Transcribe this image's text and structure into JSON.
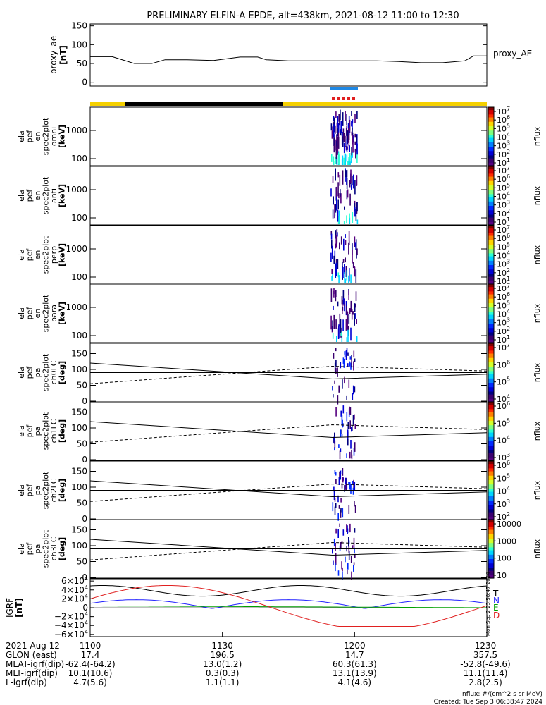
{
  "title": "PRELIMINARY ELFIN-A EPDE, alt=438km, 2021-08-12 11:00 to 12:30",
  "colors": {
    "day_bar": "#f5d000",
    "night_bar": "#000000",
    "blue": "#1e88e5",
    "red": "#e02020",
    "bx": "#e02020",
    "by": "#2020ff",
    "bz": "#00a000",
    "bt": "#000000"
  },
  "chart_data": [
    {
      "type": "line",
      "id": "proxy_ae",
      "ylabel": [
        "proxy_ae",
        "[nT]"
      ],
      "series_label": "proxy_AE",
      "ylim": [
        -10,
        155
      ],
      "yticks": [
        "150",
        "100",
        "50",
        "0"
      ],
      "ytick_values": [
        150,
        100,
        50,
        0
      ],
      "x": [
        0,
        5,
        10,
        14,
        17,
        22,
        28,
        34,
        38,
        40,
        45,
        50,
        55,
        60,
        65,
        70,
        75,
        80,
        85,
        87,
        90
      ],
      "y": [
        68,
        68,
        50,
        50,
        60,
        60,
        58,
        67,
        67,
        60,
        57,
        57,
        57,
        57,
        57,
        55,
        52,
        52,
        57,
        70,
        70
      ]
    },
    {
      "type": "heatmap",
      "id": "omni",
      "ylabel": [
        "ela",
        "pef",
        "en",
        "spec2plot",
        "omni",
        "[keV]"
      ],
      "yticks": [
        "1000",
        "100"
      ],
      "colorbar_ticks": [
        "10^7",
        "10^6",
        "10^5",
        "10^4",
        "10^3",
        "10^2",
        "10^1"
      ],
      "colorbar_label": "nflux"
    },
    {
      "type": "heatmap",
      "id": "anti",
      "ylabel": [
        "ela",
        "pef",
        "en",
        "spec2plot",
        "anti",
        "[keV]"
      ],
      "yticks": [
        "1000",
        "100"
      ],
      "colorbar_ticks": [
        "10^7",
        "10^6",
        "10^5",
        "10^4",
        "10^3",
        "10^2",
        "10^1"
      ],
      "colorbar_label": "nflux"
    },
    {
      "type": "heatmap",
      "id": "perp",
      "ylabel": [
        "ela",
        "pef",
        "en",
        "spec2plot",
        "perp",
        "[keV]"
      ],
      "yticks": [
        "1000",
        "100"
      ],
      "colorbar_ticks": [
        "10^7",
        "10^6",
        "10^5",
        "10^4",
        "10^3",
        "10^2",
        "10^1"
      ],
      "colorbar_label": "nflux"
    },
    {
      "type": "heatmap",
      "id": "para",
      "ylabel": [
        "ela",
        "pef",
        "en",
        "spec2plot",
        "para",
        "[keV]"
      ],
      "yticks": [
        "1000",
        "100"
      ],
      "colorbar_ticks": [
        "10^7",
        "10^6",
        "10^5",
        "10^4",
        "10^3",
        "10^2",
        "10^1"
      ],
      "colorbar_label": "nflux"
    },
    {
      "type": "heatmap",
      "id": "ch0LC",
      "ylabel": [
        "ela",
        "pef",
        "pa",
        "spec2plot",
        "ch0LC",
        "[deg]"
      ],
      "yticks": [
        "150",
        "100",
        "50",
        "0"
      ],
      "colorbar_ticks": [
        "10^7",
        "10^6",
        "10^5",
        "10^4"
      ],
      "colorbar_label": "nflux"
    },
    {
      "type": "heatmap",
      "id": "ch1LC",
      "ylabel": [
        "ela",
        "pef",
        "pa",
        "spec2plot",
        "ch1LC",
        "[deg]"
      ],
      "yticks": [
        "150",
        "100",
        "50",
        "0"
      ],
      "colorbar_ticks": [
        "10^6",
        "10^5",
        "10^4",
        "10^3"
      ],
      "colorbar_label": "nflux"
    },
    {
      "type": "heatmap",
      "id": "ch2LC",
      "ylabel": [
        "ela",
        "pef",
        "pa",
        "spec2plot",
        "ch2LC",
        "[deg]"
      ],
      "yticks": [
        "150",
        "100",
        "50",
        "0"
      ],
      "colorbar_ticks": [
        "10^6",
        "10^5",
        "10^4",
        "10^3",
        "10^2"
      ],
      "colorbar_label": "nflux"
    },
    {
      "type": "heatmap",
      "id": "ch3LC",
      "ylabel": [
        "ela",
        "pef",
        "pa",
        "spec2plot",
        "ch3LC",
        "[deg]"
      ],
      "yticks": [
        "150",
        "100",
        "50",
        "0"
      ],
      "colorbar_ticks": [
        "10000",
        "1000",
        "100",
        "10"
      ],
      "colorbar_label": "nflux"
    },
    {
      "type": "line",
      "id": "igrf",
      "ylabel": [
        "IGRF",
        "[nT]"
      ],
      "ylim": [
        -65000,
        65000
      ],
      "yticks": [
        "6×10^4",
        "4×10^4",
        "2×10^4",
        "0",
        "−2×10^4",
        "−4×10^4",
        "−6×10^4"
      ],
      "ytick_values": [
        60000,
        40000,
        20000,
        0,
        -20000,
        -40000,
        -60000
      ],
      "legend": [
        "T",
        "N",
        "E",
        "D"
      ],
      "side_text": "Mon Sep 2 23:58:47 2024"
    }
  ],
  "xaxis": {
    "row_labels": [
      "2021 Aug 12",
      "GLON (east)",
      "MLAT-igrf(dip)",
      "MLT-igrf(dip)",
      "L-igrf(dip)"
    ],
    "ticks": [
      {
        "label": "1100",
        "glon": "17.4",
        "mlat": "-62.4(-64.2)",
        "mlt": "10.1(10.6)",
        "l": "4.7(5.6)"
      },
      {
        "label": "1130",
        "glon": "196.5",
        "mlat": "13.0(1.2)",
        "mlt": "0.3(0.3)",
        "l": "1.1(1.1)"
      },
      {
        "label": "1200",
        "glon": "14.7",
        "mlat": "60.3(61.3)",
        "mlt": "13.1(13.9)",
        "l": "4.1(4.6)"
      },
      {
        "label": "1230",
        "glon": "357.5",
        "mlat": "-52.8(-49.6)",
        "mlt": "11.1(11.4)",
        "l": "2.8(2.5)"
      }
    ]
  },
  "footer": {
    "units": "nflux: #/(cm^2 s sr MeV)",
    "created": "Created: Tue Sep  3 06:38:47 2024"
  }
}
